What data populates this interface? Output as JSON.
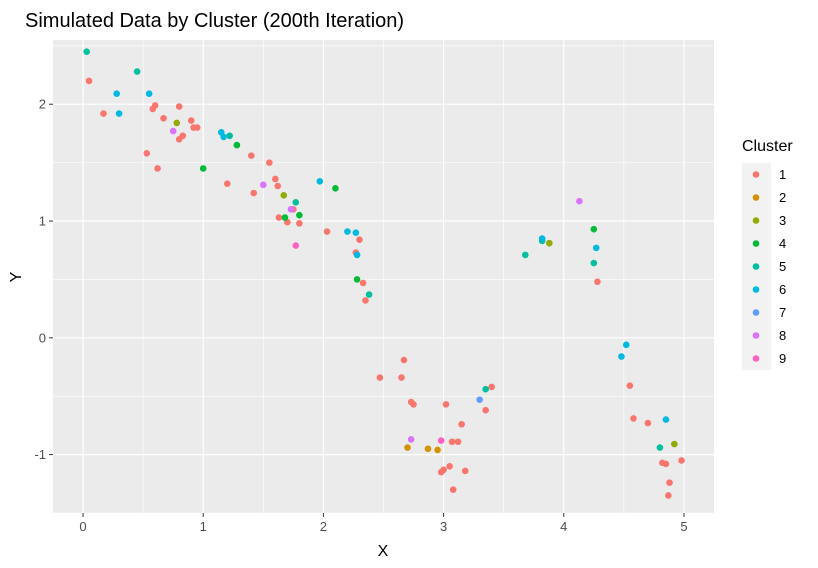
{
  "chart_data": {
    "type": "scatter",
    "title": "Simulated Data by Cluster (200th Iteration)",
    "xlabel": "X",
    "ylabel": "Y",
    "xlim": [
      -0.25,
      5.25
    ],
    "ylim": [
      -1.5,
      2.55
    ],
    "x_ticks": [
      0,
      1,
      2,
      3,
      4,
      5
    ],
    "y_ticks": [
      -1,
      0,
      1,
      2
    ],
    "x_tick_labels": [
      "0",
      "1",
      "2",
      "3",
      "4",
      "5"
    ],
    "y_tick_labels": [
      "-1",
      "0",
      "1",
      "2"
    ],
    "grid": true,
    "background": "#ebebeb",
    "legend": {
      "title": "Cluster",
      "position": "right"
    },
    "series": [
      {
        "name": "1",
        "color": "#F8766D",
        "points": [
          [
            0.05,
            2.2
          ],
          [
            0.17,
            1.92
          ],
          [
            0.53,
            1.58
          ],
          [
            0.58,
            1.96
          ],
          [
            0.6,
            1.99
          ],
          [
            0.62,
            1.45
          ],
          [
            0.67,
            1.88
          ],
          [
            0.8,
            1.98
          ],
          [
            0.8,
            1.7
          ],
          [
            0.83,
            1.73
          ],
          [
            0.9,
            1.86
          ],
          [
            0.92,
            1.8
          ],
          [
            0.95,
            1.8
          ],
          [
            1.2,
            1.32
          ],
          [
            1.4,
            1.56
          ],
          [
            1.42,
            1.24
          ],
          [
            1.55,
            1.5
          ],
          [
            1.6,
            1.36
          ],
          [
            1.62,
            1.3
          ],
          [
            1.63,
            1.03
          ],
          [
            1.7,
            0.99
          ],
          [
            1.75,
            1.1
          ],
          [
            1.8,
            0.98
          ],
          [
            2.03,
            0.91
          ],
          [
            2.27,
            0.73
          ],
          [
            2.3,
            0.84
          ],
          [
            2.33,
            0.47
          ],
          [
            2.35,
            0.32
          ],
          [
            2.47,
            -0.34
          ],
          [
            2.65,
            -0.34
          ],
          [
            2.67,
            -0.19
          ],
          [
            2.73,
            -0.55
          ],
          [
            2.75,
            -0.57
          ],
          [
            2.98,
            -1.15
          ],
          [
            3.0,
            -1.13
          ],
          [
            3.02,
            -0.57
          ],
          [
            3.05,
            -1.1
          ],
          [
            3.07,
            -0.89
          ],
          [
            3.08,
            -1.3
          ],
          [
            3.12,
            -0.89
          ],
          [
            3.15,
            -0.74
          ],
          [
            3.18,
            -1.14
          ],
          [
            3.35,
            -0.62
          ],
          [
            3.4,
            -0.42
          ],
          [
            4.28,
            0.48
          ],
          [
            4.55,
            -0.41
          ],
          [
            4.58,
            -0.69
          ],
          [
            4.7,
            -0.73
          ],
          [
            4.82,
            -1.07
          ],
          [
            4.85,
            -1.08
          ],
          [
            4.87,
            -1.35
          ],
          [
            4.88,
            -1.24
          ],
          [
            4.98,
            -1.05
          ]
        ]
      },
      {
        "name": "2",
        "color": "#D39200",
        "points": [
          [
            2.7,
            -0.94
          ],
          [
            2.87,
            -0.95
          ],
          [
            2.95,
            -0.96
          ]
        ]
      },
      {
        "name": "3",
        "color": "#93AA00",
        "points": [
          [
            0.78,
            1.84
          ],
          [
            1.67,
            1.22
          ],
          [
            3.88,
            0.81
          ],
          [
            4.92,
            -0.91
          ]
        ]
      },
      {
        "name": "4",
        "color": "#00BA38",
        "points": [
          [
            1.0,
            1.45
          ],
          [
            1.28,
            1.65
          ],
          [
            1.68,
            1.03
          ],
          [
            1.8,
            1.05
          ],
          [
            2.1,
            1.28
          ],
          [
            2.28,
            0.5
          ],
          [
            4.25,
            0.93
          ]
        ]
      },
      {
        "name": "5",
        "color": "#00C19F",
        "points": [
          [
            0.03,
            2.45
          ],
          [
            0.45,
            2.28
          ],
          [
            1.22,
            1.73
          ],
          [
            1.77,
            1.16
          ],
          [
            2.38,
            0.37
          ],
          [
            3.35,
            -0.44
          ],
          [
            3.68,
            0.71
          ],
          [
            3.82,
            0.83
          ],
          [
            4.25,
            0.64
          ],
          [
            4.8,
            -0.94
          ]
        ]
      },
      {
        "name": "6",
        "color": "#00B9E3",
        "points": [
          [
            0.28,
            2.09
          ],
          [
            0.3,
            1.92
          ],
          [
            0.55,
            2.09
          ],
          [
            1.15,
            1.76
          ],
          [
            1.17,
            1.72
          ],
          [
            1.97,
            1.34
          ],
          [
            2.2,
            0.91
          ],
          [
            2.27,
            0.9
          ],
          [
            2.28,
            0.71
          ],
          [
            3.82,
            0.85
          ],
          [
            4.27,
            0.77
          ],
          [
            4.48,
            -0.16
          ],
          [
            4.52,
            -0.06
          ],
          [
            4.85,
            -0.7
          ]
        ]
      },
      {
        "name": "7",
        "color": "#619CFF",
        "points": [
          [
            3.3,
            -0.53
          ]
        ]
      },
      {
        "name": "8",
        "color": "#DB72FB",
        "points": [
          [
            0.75,
            1.77
          ],
          [
            1.5,
            1.31
          ],
          [
            1.73,
            1.1
          ],
          [
            2.73,
            -0.87
          ],
          [
            4.13,
            1.17
          ]
        ]
      },
      {
        "name": "9",
        "color": "#FF61C3",
        "points": [
          [
            1.77,
            0.79
          ],
          [
            2.98,
            -0.88
          ]
        ]
      }
    ]
  }
}
